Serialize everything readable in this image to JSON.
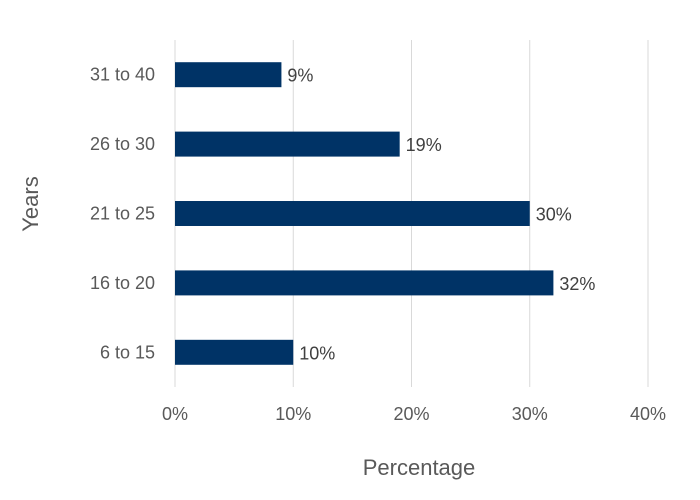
{
  "chart_data": {
    "type": "bar",
    "orientation": "horizontal",
    "categories": [
      "6  to 15",
      "16 to 20",
      "21 to 25",
      "26 to 30",
      "31 to 40"
    ],
    "values": [
      10,
      32,
      30,
      19,
      9
    ],
    "value_labels": [
      "10%",
      "32%",
      "30%",
      "19%",
      "9%"
    ],
    "xlabel": "Percentage",
    "ylabel": "Years",
    "xlim": [
      0,
      40
    ],
    "x_ticks": [
      0,
      10,
      20,
      30,
      40
    ],
    "x_tick_labels": [
      "0%",
      "10%",
      "20%",
      "30%",
      "40%"
    ],
    "grid": "vertical",
    "legend": "none",
    "bar_color": "#003366"
  }
}
